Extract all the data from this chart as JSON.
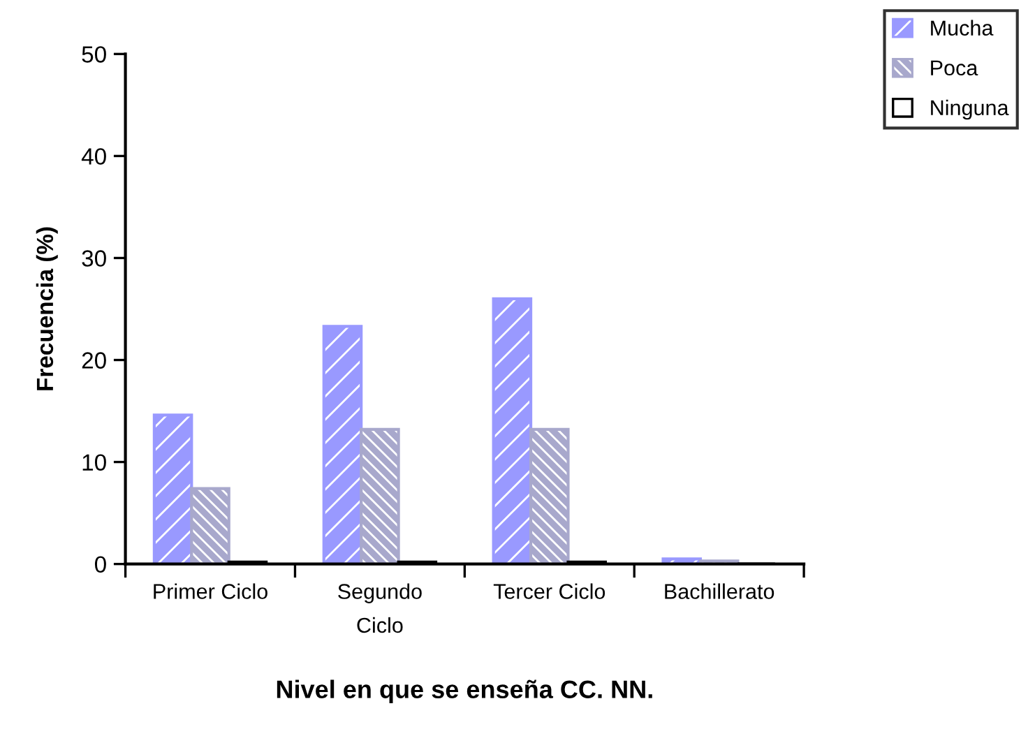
{
  "chart_data": {
    "type": "bar",
    "xlabel": "Nivel en que se enseña CC. NN.",
    "ylabel": "Frecuencia (%)",
    "categories": [
      "Primer Ciclo",
      "Segundo\nCiclo",
      "Tercer Ciclo",
      "Bachillerato"
    ],
    "series": [
      {
        "name": "Mucha",
        "color": "#9999ff",
        "values": [
          14.6,
          23.3,
          26.0,
          0.5
        ]
      },
      {
        "name": "Poca",
        "color": "#a8a8cc",
        "values": [
          7.4,
          13.2,
          13.2,
          0.3
        ]
      },
      {
        "name": "Ninguna",
        "color": "#ffffff",
        "values": [
          0.2,
          0.2,
          0.2,
          0
        ]
      }
    ],
    "ylim": [
      0,
      50
    ],
    "yticks": [
      0,
      10,
      20,
      30,
      40,
      50
    ],
    "grid": false,
    "legend": "top right"
  }
}
